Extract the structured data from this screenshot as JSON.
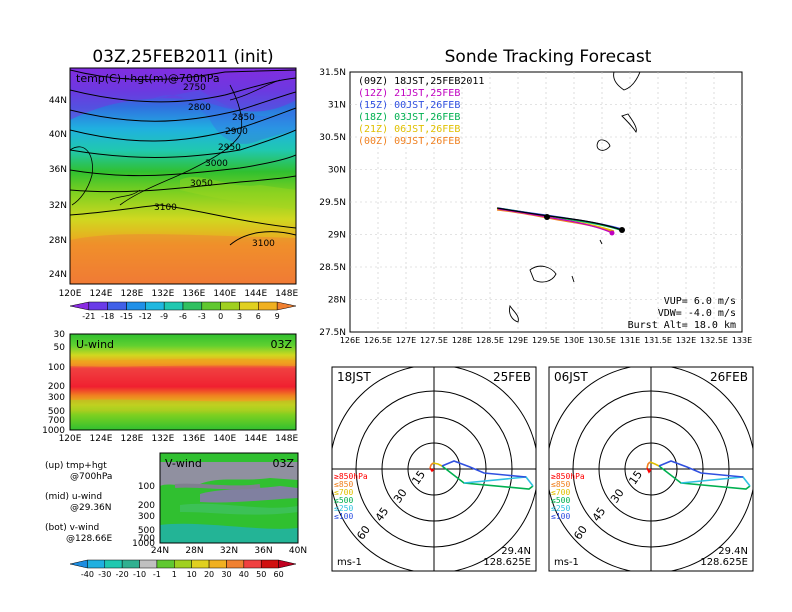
{
  "left_title": "03Z,25FEB2011 (init)",
  "right_title": "Sonde Tracking Forecast",
  "top_map": {
    "label": "temp(C)+hgt(m)@700hPa",
    "lon_ticks": [
      "120E",
      "124E",
      "128E",
      "132E",
      "136E",
      "140E",
      "144E",
      "148E"
    ],
    "lat_ticks": [
      "44N",
      "40N",
      "36N",
      "32N",
      "28N",
      "24N"
    ],
    "contours": [
      "2750",
      "2800",
      "2850",
      "2900",
      "2950",
      "3000",
      "3050",
      "3100",
      "3100"
    ],
    "colorbar": [
      "-21",
      "-18",
      "-15",
      "-12",
      "-9",
      "-6",
      "-3",
      "0",
      "3",
      "6",
      "9"
    ]
  },
  "u_panel": {
    "label": "U-wind",
    "time": "03Z",
    "y_ticks": [
      "30",
      "50",
      "100",
      "200",
      "300",
      "500",
      "700",
      "1000"
    ],
    "x_ticks": [
      "120E",
      "124E",
      "128E",
      "132E",
      "136E",
      "140E",
      "144E",
      "148E"
    ]
  },
  "v_panel": {
    "label": "V-wind",
    "time": "03Z",
    "y_ticks": [
      "100",
      "200",
      "300",
      "500",
      "700",
      "1000"
    ],
    "x_ticks": [
      "24N",
      "28N",
      "32N",
      "36N",
      "40N"
    ],
    "colorbar": [
      "-40",
      "-30",
      "-20",
      "-10",
      "-1",
      "1",
      "10",
      "20",
      "30",
      "40",
      "50",
      "60"
    ]
  },
  "legend_notes": [
    "(up) tmp+hgt",
    "@700hPa",
    "(mid) u-wind",
    "@29.36N",
    "(bot) v-wind",
    "@128.66E"
  ],
  "track_legend": [
    {
      "text": "(09Z) 18JST,25FEB2011",
      "color": "#000000"
    },
    {
      "text": "(12Z) 21JST,25FEB",
      "color": "#c000c0"
    },
    {
      "text": "(15Z) 00JST,26FEB",
      "color": "#3050e0"
    },
    {
      "text": "(18Z) 03JST,26FEB",
      "color": "#00b050"
    },
    {
      "text": "(21Z) 06JST,26FEB",
      "color": "#e0c000"
    },
    {
      "text": "(00Z) 09JST,26FEB",
      "color": "#f08020"
    }
  ],
  "track_map": {
    "lat_ticks": [
      "31.5N",
      "31N",
      "30.5N",
      "30N",
      "29.5N",
      "29N",
      "28.5N",
      "28N",
      "27.5N"
    ],
    "lon_ticks": [
      "126E",
      "126.5E",
      "127E",
      "127.5E",
      "128E",
      "128.5E",
      "129E",
      "129.5E",
      "130E",
      "130.5E",
      "131E",
      "131.5E",
      "132E",
      "132.5E",
      "133E"
    ],
    "params": [
      "VUP= 6.0 m/s",
      "VDW= -4.0 m/s",
      "Burst Alt= 18.0 km"
    ]
  },
  "hodographs": [
    {
      "time": "18JST",
      "date": "25FEB",
      "unit": "ms-1",
      "lat": "29.4N",
      "lon": "128.625E",
      "rings": [
        "15",
        "30",
        "45",
        "60"
      ],
      "pressure_legend": [
        {
          "text": "≥850hPa",
          "color": "#ff0000"
        },
        {
          "text": "≤850",
          "color": "#f08020"
        },
        {
          "text": "≤700",
          "color": "#e0c000"
        },
        {
          "text": "≤500",
          "color": "#00b050"
        },
        {
          "text": "≤250",
          "color": "#30c0e0"
        },
        {
          "text": "≤100",
          "color": "#3050e0"
        }
      ]
    },
    {
      "time": "06JST",
      "date": "26FEB",
      "unit": "ms-1",
      "lat": "29.4N",
      "lon": "128.625E",
      "rings": [
        "15",
        "30",
        "45",
        "60"
      ],
      "pressure_legend": [
        {
          "text": "≥850hPa",
          "color": "#ff0000"
        },
        {
          "text": "≤850",
          "color": "#f08020"
        },
        {
          "text": "≤700",
          "color": "#e0c000"
        },
        {
          "text": "≤500",
          "color": "#00b050"
        },
        {
          "text": "≤250",
          "color": "#30c0e0"
        },
        {
          "text": "≤100",
          "color": "#3050e0"
        }
      ]
    }
  ]
}
